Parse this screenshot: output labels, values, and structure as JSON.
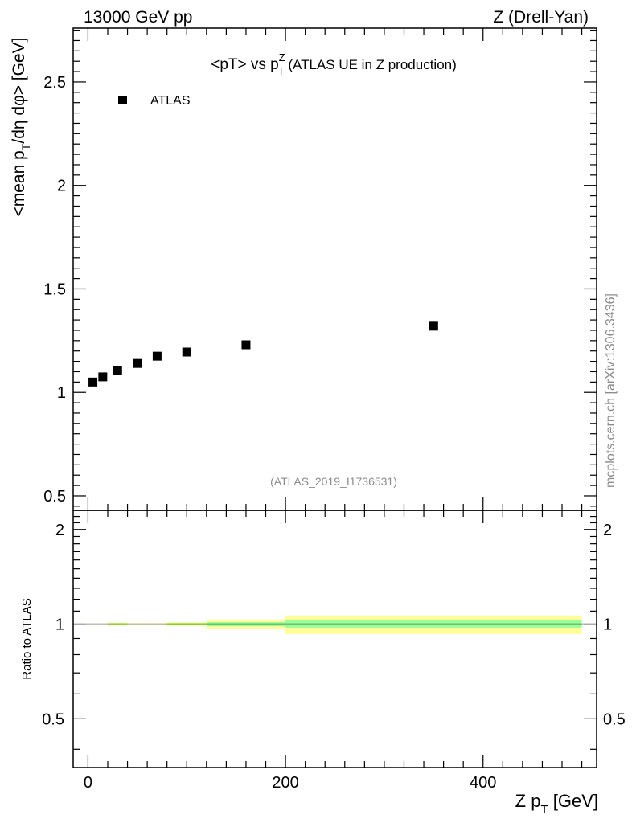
{
  "header": {
    "left": "13000 GeV pp",
    "right": "Z (Drell-Yan)"
  },
  "side_label": "mcplots.cern.ch [arXiv:1306.3436]",
  "analysis_tag": "(ATLAS_2019_I1736531)",
  "chart_data": [
    {
      "type": "scatter",
      "title_parts": {
        "pre": "<pT> vs p",
        "sup": "Z",
        "sub": "T",
        "post": " (ATLAS UE in Z production)"
      },
      "ylabel_parts": {
        "pre": "<mean p",
        "sub": "T",
        "post": "/dη dφ> [GeV]"
      },
      "xlabel_parts": {
        "pre": "Z p",
        "sub": "T",
        "post": " [GeV]"
      },
      "xlim": [
        -15,
        515
      ],
      "ylim": [
        0.43,
        2.76
      ],
      "x_ticks": [
        0,
        200,
        400
      ],
      "x_tick_labels": [
        "0",
        "200",
        "400"
      ],
      "y_ticks": [
        0.5,
        1,
        1.5,
        2,
        2.5
      ],
      "y_tick_labels": [
        "0.5",
        "1",
        "1.5",
        "2",
        "2.5"
      ],
      "legend_placement": "top-left",
      "series": [
        {
          "name": "ATLAS",
          "color": "#000000",
          "marker": "square",
          "x": [
            5,
            15,
            30,
            50,
            70,
            100,
            160,
            350
          ],
          "y": [
            1.05,
            1.075,
            1.105,
            1.14,
            1.175,
            1.195,
            1.23,
            1.32
          ]
        }
      ]
    },
    {
      "type": "area",
      "ylabel": "Ratio to ATLAS",
      "xlim": [
        -15,
        515
      ],
      "ylim": [
        0.35,
        2.3
      ],
      "y_ticks": [
        0.5,
        1,
        2
      ],
      "y_tick_labels": [
        "0.5",
        "1",
        "2"
      ],
      "reference_line": 1.0,
      "band_colors": {
        "inner": "#99ff99",
        "outer": "#ffff99"
      },
      "bins": [
        {
          "x0": 0,
          "x1": 10,
          "inner": [
            0.998,
            1.002
          ],
          "outer": [
            0.996,
            1.004
          ]
        },
        {
          "x0": 10,
          "x1": 20,
          "inner": [
            0.998,
            1.002
          ],
          "outer": [
            0.996,
            1.004
          ]
        },
        {
          "x0": 20,
          "x1": 40,
          "inner": [
            0.994,
            1.006
          ],
          "outer": [
            0.988,
            1.012
          ]
        },
        {
          "x0": 40,
          "x1": 60,
          "inner": [
            0.997,
            1.003
          ],
          "outer": [
            0.994,
            1.006
          ]
        },
        {
          "x0": 60,
          "x1": 80,
          "inner": [
            0.997,
            1.003
          ],
          "outer": [
            0.994,
            1.006
          ]
        },
        {
          "x0": 80,
          "x1": 120,
          "inner": [
            0.993,
            1.007
          ],
          "outer": [
            0.985,
            1.015
          ]
        },
        {
          "x0": 120,
          "x1": 200,
          "inner": [
            0.985,
            1.015
          ],
          "outer": [
            0.965,
            1.035
          ]
        },
        {
          "x0": 200,
          "x1": 500,
          "inner": [
            0.975,
            1.03
          ],
          "outer": [
            0.93,
            1.065
          ]
        }
      ]
    }
  ]
}
